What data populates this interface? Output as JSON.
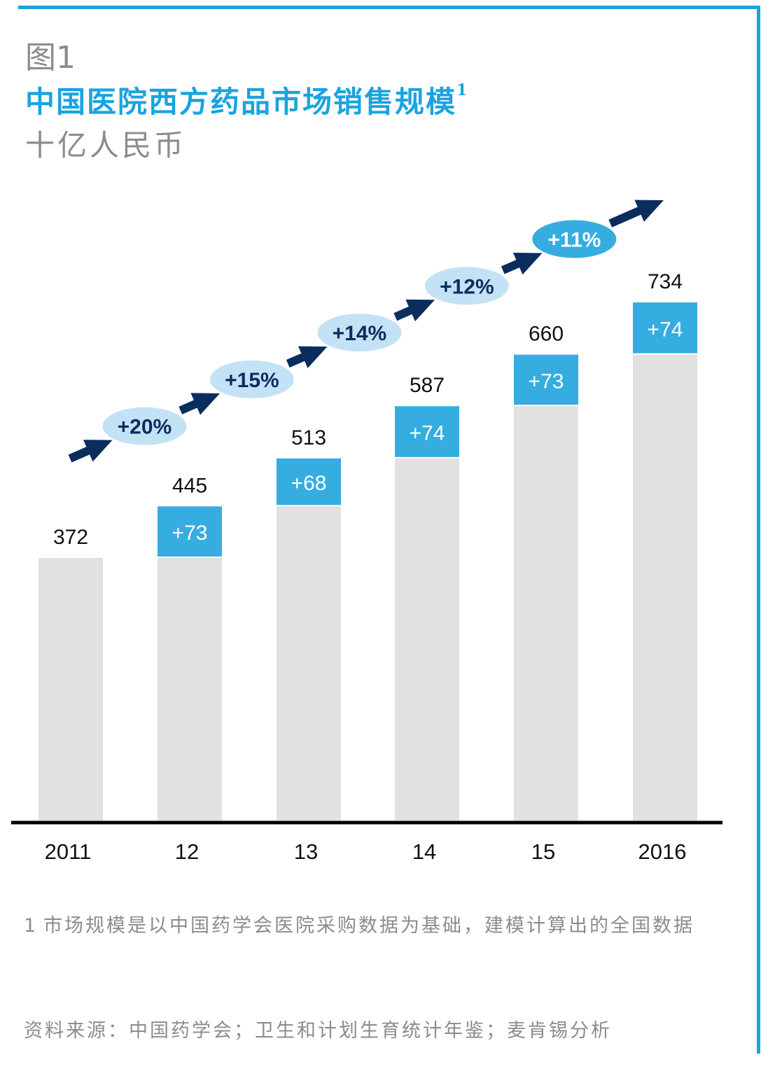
{
  "figure_label": "图1",
  "title": "中国医院西方药品市场销售规模",
  "title_superscript": "1",
  "unit": "十亿人民币",
  "chart_data": {
    "type": "bar",
    "stacked": true,
    "categories": [
      "2011",
      "12",
      "13",
      "14",
      "15",
      "2016"
    ],
    "totals": [
      372,
      445,
      513,
      587,
      660,
      734
    ],
    "increments": [
      null,
      73,
      68,
      74,
      73,
      74
    ],
    "increment_labels": [
      "",
      "+73",
      "+68",
      "+74",
      "+73",
      "+74"
    ],
    "growth_rates": [
      "+20%",
      "+15%",
      "+14%",
      "+12%",
      "+11%"
    ],
    "ylim": [
      0,
      734
    ],
    "colors": {
      "base": "#e1e1e1",
      "increment": "#35ade1",
      "arrow": "#0b2d5e",
      "bubble": "#c3e2f5",
      "bubble_last": "#35ade1",
      "axis": "#000000"
    }
  },
  "footnote": {
    "number": "1",
    "text": "市场规模是以中国药学会医院采购数据为基础，建模计算出的全国数据"
  },
  "source": "资料来源：中国药学会；卫生和计划生育统计年鉴；麦肯锡分析"
}
